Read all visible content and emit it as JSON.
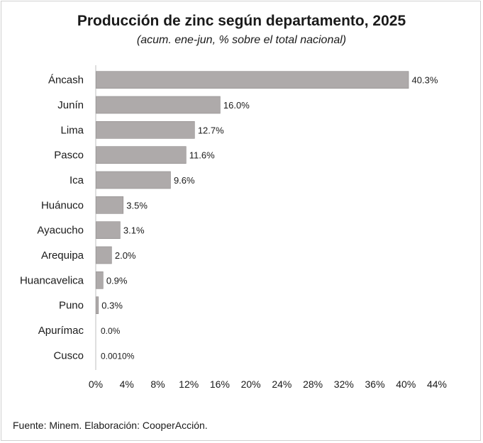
{
  "title": "Producción de zinc según departamento, 2025",
  "subtitle": "(acum. ene-jun, % sobre el total nacional)",
  "footer": "Fuente: Minem. Elaboración: CooperAcción.",
  "chart_data": {
    "type": "bar",
    "orientation": "horizontal",
    "title": "Producción de zinc según departamento, 2025",
    "subtitle": "(acum. ene-jun, % sobre el total nacional)",
    "categories": [
      "Áncash",
      "Junín",
      "Lima",
      "Pasco",
      "Ica",
      "Huánuco",
      "Ayacucho",
      "Arequipa",
      "Huancavelica",
      "Puno",
      "Apurímac",
      "Cusco"
    ],
    "values": [
      40.3,
      16.0,
      12.7,
      11.6,
      9.6,
      3.5,
      3.1,
      2.0,
      0.9,
      0.3,
      0.0,
      0.001
    ],
    "data_labels": [
      "40.3%",
      "16.0%",
      "12.7%",
      "11.6%",
      "9.6%",
      "3.5%",
      "3.1%",
      "2.0%",
      "0.9%",
      "0.3%",
      "0.0%",
      "0.0010%"
    ],
    "xlim": [
      0,
      44
    ],
    "xticks": [
      0,
      4,
      8,
      12,
      16,
      20,
      24,
      28,
      32,
      36,
      40,
      44
    ],
    "xtick_labels": [
      "0%",
      "4%",
      "8%",
      "12%",
      "16%",
      "20%",
      "24%",
      "28%",
      "32%",
      "36%",
      "40%",
      "44%"
    ],
    "xlabel": "",
    "ylabel": "",
    "grid": false,
    "legend": "none",
    "bar_color": "#aeaaaa"
  }
}
